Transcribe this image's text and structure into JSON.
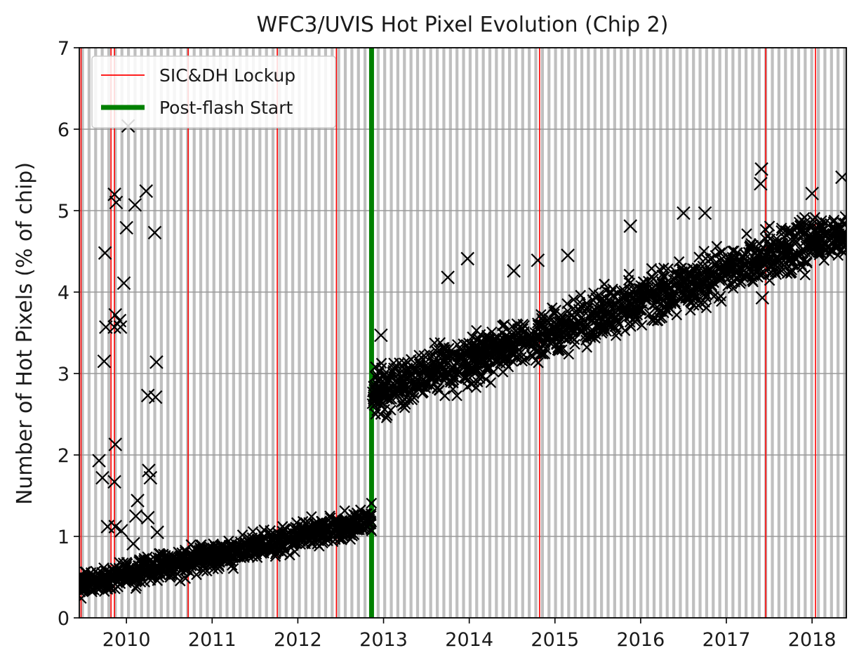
{
  "chart_data": {
    "type": "scatter",
    "title": "WFC3/UVIS Hot Pixel Evolution (Chip 2)",
    "xlabel": "",
    "ylabel": "Number of Hot Pixels (% of chip)",
    "xlim": [
      2009.45,
      2018.4
    ],
    "ylim": [
      0,
      7
    ],
    "x_ticks": [
      2010,
      2011,
      2012,
      2013,
      2014,
      2015,
      2016,
      2017,
      2018
    ],
    "x_tick_labels": [
      "2010",
      "2011",
      "2012",
      "2013",
      "2014",
      "2015",
      "2016",
      "2017",
      "2018"
    ],
    "y_ticks": [
      0,
      1,
      2,
      3,
      4,
      5,
      6,
      7
    ],
    "y_tick_labels": [
      "0",
      "1",
      "2",
      "3",
      "4",
      "5",
      "6",
      "7"
    ],
    "grid": true,
    "legend_position": "top-left",
    "legend": [
      {
        "label": "SIC&DH Lockup",
        "color": "#ff0000",
        "style": "thin-line"
      },
      {
        "label": "Post-flash Start",
        "color": "#008000",
        "style": "thick-line"
      }
    ],
    "marker": "x",
    "marker_color": "#000000",
    "anneal_band_color": "#bfbfbf",
    "anneal_band_period_days": 28,
    "lockup_dates": [
      2009.47,
      2009.82,
      2009.86,
      2010.72,
      2011.76,
      2012.45,
      2014.82,
      2017.46,
      2018.04
    ],
    "postflash_start": 2012.86,
    "trend_segments": [
      {
        "x_start": 2009.45,
        "x_end": 2012.86,
        "y_start": 0.4,
        "y_end": 1.2,
        "spread": 0.14
      },
      {
        "x_start": 2012.86,
        "x_end": 2018.4,
        "y_start": 2.75,
        "y_end": 4.75,
        "spread": 0.25
      }
    ],
    "outliers": [
      {
        "x": 2009.68,
        "y": 1.93
      },
      {
        "x": 2009.72,
        "y": 1.72
      },
      {
        "x": 2009.75,
        "y": 4.48
      },
      {
        "x": 2009.74,
        "y": 3.15
      },
      {
        "x": 2009.76,
        "y": 3.57
      },
      {
        "x": 2009.78,
        "y": 1.12
      },
      {
        "x": 2009.86,
        "y": 5.2
      },
      {
        "x": 2009.88,
        "y": 5.1
      },
      {
        "x": 2009.87,
        "y": 3.72
      },
      {
        "x": 2009.86,
        "y": 3.57
      },
      {
        "x": 2009.87,
        "y": 2.13
      },
      {
        "x": 2009.86,
        "y": 1.67
      },
      {
        "x": 2009.87,
        "y": 1.12
      },
      {
        "x": 2009.92,
        "y": 3.65
      },
      {
        "x": 2009.93,
        "y": 3.57
      },
      {
        "x": 2009.94,
        "y": 1.07
      },
      {
        "x": 2009.97,
        "y": 4.11
      },
      {
        "x": 2010.02,
        "y": 6.04
      },
      {
        "x": 2010.0,
        "y": 4.79
      },
      {
        "x": 2010.1,
        "y": 5.07
      },
      {
        "x": 2010.13,
        "y": 1.44
      },
      {
        "x": 2010.11,
        "y": 1.25
      },
      {
        "x": 2010.08,
        "y": 0.91
      },
      {
        "x": 2010.23,
        "y": 5.24
      },
      {
        "x": 2010.25,
        "y": 2.73
      },
      {
        "x": 2010.26,
        "y": 1.81
      },
      {
        "x": 2010.28,
        "y": 1.72
      },
      {
        "x": 2010.25,
        "y": 1.23
      },
      {
        "x": 2010.33,
        "y": 4.73
      },
      {
        "x": 2010.35,
        "y": 3.14
      },
      {
        "x": 2010.34,
        "y": 2.71
      },
      {
        "x": 2010.36,
        "y": 1.05
      },
      {
        "x": 2012.97,
        "y": 3.47
      },
      {
        "x": 2013.75,
        "y": 4.18
      },
      {
        "x": 2013.98,
        "y": 4.41
      },
      {
        "x": 2014.52,
        "y": 4.26
      },
      {
        "x": 2014.8,
        "y": 4.39
      },
      {
        "x": 2015.15,
        "y": 4.45
      },
      {
        "x": 2015.88,
        "y": 4.81
      },
      {
        "x": 2016.5,
        "y": 4.97
      },
      {
        "x": 2016.75,
        "y": 4.97
      },
      {
        "x": 2017.41,
        "y": 5.51
      },
      {
        "x": 2017.4,
        "y": 5.33
      },
      {
        "x": 2017.42,
        "y": 3.93
      },
      {
        "x": 2018.0,
        "y": 5.21
      },
      {
        "x": 2018.35,
        "y": 5.41
      }
    ]
  }
}
